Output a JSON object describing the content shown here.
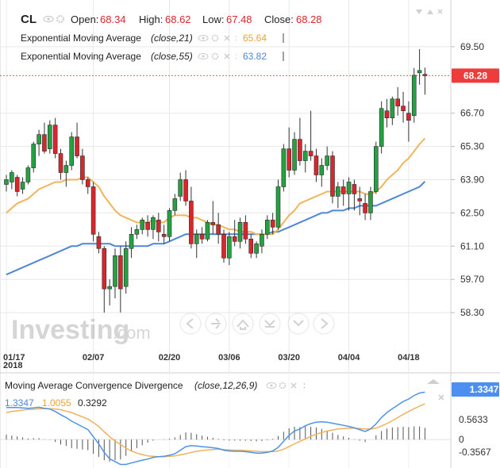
{
  "header": {
    "symbol": "CL",
    "open_label": "Open:",
    "open_value": "68.34",
    "high_label": "High:",
    "high_value": "68.62",
    "low_label": "Low:",
    "low_value": "67.48",
    "close_label": "Close:",
    "close_value": "68.28"
  },
  "legend": {
    "ema21_name": "Exponential Moving Average",
    "ema21_params": "(close,21)",
    "ema21_value": "65.64",
    "ema55_name": "Exponential Moving Average",
    "ema55_params": "(close,55)",
    "ema55_value": "63.82",
    "macd_name": "Moving Average Convergence Divergence",
    "macd_params": "(close,12,26,9)",
    "macd_value": "1.3347",
    "signal_value": "1.0055",
    "hist_value": "0.3292"
  },
  "watermark": {
    "brand": "Investing",
    "suffix": ".com"
  },
  "price_tag": "68.28",
  "macd_tag": "1.3347",
  "colors": {
    "up": "#26a142",
    "down": "#d9262d",
    "ema21": "#f2b45b",
    "ema55": "#4f87d8",
    "macd_line": "#4f93e8",
    "signal_line": "#f0b25c",
    "tag": "#ee3b3b",
    "macd_tag": "#4c8ff0",
    "grid": "#e8e8e8"
  },
  "chart_data": [
    {
      "type": "candlestick",
      "x_labels": [
        "01/17",
        "02/07",
        "02/20",
        "03/06",
        "03/20",
        "04/04",
        "04/18"
      ],
      "x_sublabel": "2018",
      "y_ticks": [
        "69.50",
        "66.70",
        "65.30",
        "63.90",
        "62.50",
        "61.10",
        "59.70",
        "58.30"
      ],
      "ylim": [
        57.1,
        70.8
      ],
      "last_price": 68.28,
      "candles": [
        [
          63.7,
          64.1,
          63.4,
          63.9
        ],
        [
          63.8,
          64.3,
          63.5,
          64.2
        ],
        [
          64.0,
          64.1,
          63.2,
          63.4
        ],
        [
          63.5,
          64.0,
          63.3,
          63.8
        ],
        [
          63.8,
          64.5,
          63.7,
          64.4
        ],
        [
          64.4,
          65.5,
          64.2,
          65.4
        ],
        [
          65.4,
          66.0,
          64.9,
          65.8
        ],
        [
          65.8,
          66.3,
          65.0,
          65.1
        ],
        [
          65.2,
          66.4,
          65.0,
          66.2
        ],
        [
          66.2,
          66.5,
          64.8,
          65.0
        ],
        [
          65.0,
          65.2,
          63.9,
          64.2
        ],
        [
          64.2,
          64.7,
          63.6,
          64.5
        ],
        [
          64.5,
          65.9,
          64.3,
          65.7
        ],
        [
          65.7,
          66.3,
          64.8,
          64.9
        ],
        [
          64.9,
          65.2,
          63.7,
          63.9
        ],
        [
          63.9,
          64.0,
          63.3,
          63.6
        ],
        [
          63.6,
          63.8,
          61.3,
          61.6
        ],
        [
          61.5,
          61.7,
          60.8,
          61.0
        ],
        [
          61.0,
          61.1,
          58.3,
          59.3
        ],
        [
          59.3,
          59.7,
          58.6,
          59.4
        ],
        [
          59.4,
          61.0,
          58.9,
          60.7
        ],
        [
          60.7,
          61.1,
          58.3,
          59.3
        ],
        [
          59.4,
          61.3,
          59.1,
          61.0
        ],
        [
          61.0,
          61.9,
          60.6,
          61.6
        ],
        [
          61.6,
          62.0,
          61.4,
          61.8
        ],
        [
          61.8,
          62.3,
          61.6,
          62.2
        ],
        [
          62.1,
          62.4,
          61.5,
          61.8
        ],
        [
          61.8,
          62.4,
          61.4,
          62.3
        ],
        [
          62.2,
          62.5,
          61.3,
          61.7
        ],
        [
          61.6,
          62.0,
          61.2,
          61.5
        ],
        [
          61.5,
          62.7,
          61.3,
          62.6
        ],
        [
          62.6,
          63.3,
          62.4,
          63.1
        ],
        [
          63.2,
          64.2,
          63.0,
          63.9
        ],
        [
          63.9,
          64.3,
          62.8,
          63.0
        ],
        [
          63.0,
          63.6,
          61.0,
          61.2
        ],
        [
          61.2,
          61.8,
          60.6,
          61.6
        ],
        [
          61.6,
          61.9,
          61.2,
          61.4
        ],
        [
          61.4,
          62.2,
          61.3,
          62.1
        ],
        [
          62.1,
          63.0,
          61.6,
          62.0
        ],
        [
          62.0,
          62.5,
          61.2,
          61.6
        ],
        [
          61.6,
          61.8,
          60.4,
          60.6
        ],
        [
          60.6,
          61.7,
          60.3,
          61.5
        ],
        [
          61.5,
          62.2,
          61.1,
          61.3
        ],
        [
          61.3,
          62.3,
          61.0,
          62.1
        ],
        [
          62.1,
          62.4,
          61.2,
          61.4
        ],
        [
          61.4,
          61.6,
          60.6,
          60.8
        ],
        [
          60.8,
          61.3,
          60.6,
          61.2
        ],
        [
          61.1,
          61.8,
          60.8,
          61.6
        ],
        [
          61.6,
          62.4,
          61.4,
          62.2
        ],
        [
          62.2,
          62.5,
          61.6,
          61.9
        ],
        [
          61.9,
          63.9,
          61.8,
          63.6
        ],
        [
          63.6,
          65.4,
          63.4,
          65.2
        ],
        [
          65.2,
          66.1,
          64.0,
          64.3
        ],
        [
          64.3,
          65.9,
          64.1,
          65.6
        ],
        [
          65.6,
          66.5,
          64.5,
          64.7
        ],
        [
          64.7,
          65.4,
          64.2,
          65.1
        ],
        [
          65.1,
          66.8,
          64.7,
          64.9
        ],
        [
          64.9,
          65.2,
          63.8,
          64.1
        ],
        [
          64.1,
          64.8,
          63.6,
          64.5
        ],
        [
          64.5,
          65.3,
          64.3,
          64.9
        ],
        [
          64.9,
          65.1,
          62.9,
          63.2
        ],
        [
          63.2,
          63.8,
          62.7,
          63.6
        ],
        [
          63.6,
          63.9,
          62.8,
          63.3
        ],
        [
          63.3,
          64.0,
          62.6,
          63.8
        ],
        [
          63.7,
          63.9,
          62.6,
          63.3
        ],
        [
          63.1,
          63.6,
          62.4,
          63.0
        ],
        [
          62.9,
          63.3,
          62.2,
          62.5
        ],
        [
          62.5,
          63.6,
          62.2,
          63.4
        ],
        [
          63.4,
          65.5,
          63.3,
          65.3
        ],
        [
          65.3,
          67.2,
          65.0,
          66.9
        ],
        [
          66.8,
          67.3,
          66.1,
          66.5
        ],
        [
          66.5,
          67.4,
          66.2,
          67.3
        ],
        [
          67.3,
          67.8,
          66.6,
          67.0
        ],
        [
          67.0,
          67.6,
          66.3,
          66.8
        ],
        [
          66.7,
          67.2,
          65.5,
          66.4
        ],
        [
          66.6,
          68.6,
          66.3,
          68.3
        ],
        [
          68.4,
          69.4,
          67.9,
          68.5
        ],
        [
          68.34,
          68.62,
          67.48,
          68.28
        ]
      ],
      "series": [
        {
          "name": "Exponential Moving Average (close,21)",
          "values": [
            62.5,
            62.7,
            62.9,
            63.0,
            63.1,
            63.3,
            63.5,
            63.6,
            63.7,
            63.8,
            63.8,
            63.9,
            63.9,
            63.9,
            64.0,
            64.0,
            63.8,
            63.6,
            63.2,
            62.9,
            62.6,
            62.4,
            62.3,
            62.2,
            62.1,
            62.1,
            62.1,
            62.2,
            62.1,
            62.1,
            62.3,
            62.4,
            62.4,
            62.4,
            62.3,
            62.3,
            62.2,
            62.1,
            62.0,
            62.0,
            61.9,
            61.8,
            61.8,
            61.7,
            61.7,
            61.7,
            61.6,
            61.6,
            61.6,
            61.6,
            61.8,
            62.1,
            62.4,
            62.6,
            62.9,
            63.0,
            63.1,
            63.2,
            63.3,
            63.4,
            63.4,
            63.4,
            63.4,
            63.4,
            63.4,
            63.4,
            63.3,
            63.3,
            63.4,
            63.6,
            63.9,
            64.1,
            64.3,
            64.6,
            64.8,
            65.1,
            65.4,
            65.64
          ]
        },
        {
          "name": "Exponential Moving Average (close,55)",
          "values": [
            59.9,
            60.0,
            60.1,
            60.2,
            60.3,
            60.4,
            60.5,
            60.6,
            60.7,
            60.8,
            60.9,
            61.0,
            61.1,
            61.1,
            61.2,
            61.2,
            61.2,
            61.2,
            61.2,
            61.2,
            61.1,
            61.1,
            61.1,
            61.1,
            61.1,
            61.1,
            61.1,
            61.2,
            61.2,
            61.2,
            61.3,
            61.4,
            61.5,
            61.6,
            61.6,
            61.6,
            61.6,
            61.6,
            61.6,
            61.6,
            61.6,
            61.6,
            61.6,
            61.6,
            61.6,
            61.6,
            61.6,
            61.6,
            61.6,
            61.7,
            61.7,
            61.8,
            61.9,
            62.0,
            62.1,
            62.2,
            62.3,
            62.4,
            62.5,
            62.5,
            62.6,
            62.6,
            62.6,
            62.7,
            62.7,
            62.8,
            62.8,
            62.8,
            62.8,
            62.9,
            63.0,
            63.1,
            63.2,
            63.3,
            63.4,
            63.5,
            63.6,
            63.82
          ]
        }
      ]
    },
    {
      "type": "line",
      "y_ticks": [
        "0.5633",
        "0",
        "-0.3567"
      ],
      "ylim": [
        -0.8,
        1.7
      ],
      "series": [
        {
          "name": "MACD",
          "values": [
            0.9,
            0.9,
            0.9,
            0.89,
            0.88,
            0.89,
            0.91,
            0.88,
            0.86,
            0.79,
            0.7,
            0.62,
            0.52,
            0.44,
            0.36,
            0.28,
            0.08,
            -0.12,
            -0.36,
            -0.54,
            -0.62,
            -0.7,
            -0.7,
            -0.66,
            -0.62,
            -0.58,
            -0.55,
            -0.5,
            -0.48,
            -0.47,
            -0.44,
            -0.4,
            -0.3,
            -0.2,
            -0.17,
            -0.18,
            -0.2,
            -0.21,
            -0.23,
            -0.25,
            -0.3,
            -0.32,
            -0.33,
            -0.33,
            -0.34,
            -0.36,
            -0.38,
            -0.38,
            -0.36,
            -0.32,
            -0.22,
            -0.05,
            0.12,
            0.24,
            0.3,
            0.39,
            0.45,
            0.49,
            0.5,
            0.49,
            0.46,
            0.43,
            0.4,
            0.37,
            0.33,
            0.28,
            0.23,
            0.3,
            0.44,
            0.62,
            0.76,
            0.87,
            0.97,
            1.07,
            1.14,
            1.24,
            1.31,
            1.3347
          ]
        },
        {
          "name": "Signal",
          "values": [
            0.76,
            0.79,
            0.81,
            0.83,
            0.85,
            0.85,
            0.87,
            0.87,
            0.87,
            0.86,
            0.84,
            0.8,
            0.76,
            0.7,
            0.64,
            0.58,
            0.48,
            0.37,
            0.22,
            0.08,
            -0.04,
            -0.14,
            -0.24,
            -0.32,
            -0.38,
            -0.42,
            -0.46,
            -0.47,
            -0.48,
            -0.48,
            -0.47,
            -0.46,
            -0.43,
            -0.4,
            -0.36,
            -0.33,
            -0.31,
            -0.29,
            -0.28,
            -0.27,
            -0.28,
            -0.29,
            -0.3,
            -0.3,
            -0.31,
            -0.32,
            -0.33,
            -0.34,
            -0.34,
            -0.34,
            -0.32,
            -0.27,
            -0.2,
            -0.12,
            -0.05,
            0.02,
            0.09,
            0.15,
            0.2,
            0.24,
            0.27,
            0.3,
            0.31,
            0.32,
            0.32,
            0.31,
            0.3,
            0.3,
            0.32,
            0.38,
            0.45,
            0.53,
            0.62,
            0.71,
            0.79,
            0.87,
            0.94,
            1.0055
          ]
        },
        {
          "name": "Histogram",
          "values": [
            0.14,
            0.11,
            0.09,
            0.06,
            0.03,
            0.04,
            0.04,
            0.01,
            -0.01,
            -0.07,
            -0.14,
            -0.18,
            -0.24,
            -0.26,
            -0.28,
            -0.3,
            -0.4,
            -0.49,
            -0.58,
            -0.62,
            -0.58,
            -0.56,
            -0.46,
            -0.34,
            -0.24,
            -0.16,
            -0.09,
            -0.03,
            0.0,
            0.01,
            0.03,
            0.06,
            0.13,
            0.2,
            0.19,
            0.15,
            0.11,
            0.08,
            0.05,
            0.02,
            -0.02,
            -0.03,
            -0.03,
            -0.03,
            -0.03,
            -0.04,
            -0.05,
            -0.04,
            -0.02,
            0.02,
            0.1,
            0.22,
            0.32,
            0.36,
            0.35,
            0.37,
            0.36,
            0.34,
            0.3,
            0.25,
            0.19,
            0.13,
            0.09,
            0.05,
            0.01,
            -0.03,
            -0.07,
            0.0,
            0.12,
            0.24,
            0.31,
            0.34,
            0.35,
            0.36,
            0.35,
            0.37,
            0.37,
            0.3292
          ]
        }
      ]
    }
  ]
}
